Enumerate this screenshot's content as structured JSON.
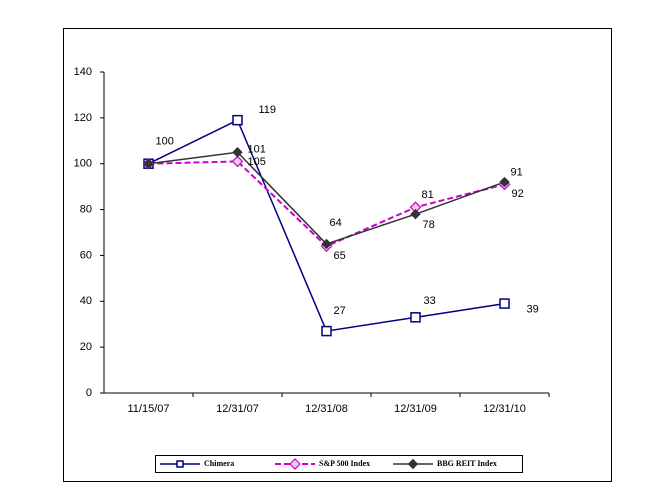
{
  "chart_data": {
    "type": "line",
    "categories": [
      "11/15/07",
      "12/31/07",
      "12/31/08",
      "12/31/09",
      "12/31/10"
    ],
    "series": [
      {
        "name": "Chimera",
        "color": "#000080",
        "values": [
          100,
          119,
          27,
          33,
          39
        ]
      },
      {
        "name": "S&P 500 Index",
        "color": "#cc00cc",
        "values": [
          100,
          101,
          64,
          81,
          91
        ]
      },
      {
        "name": "BBG REIT Index",
        "color": "#333333",
        "values": [
          100,
          105,
          65,
          78,
          92
        ]
      }
    ],
    "ylim": [
      0,
      140
    ],
    "yticks": [
      0,
      20,
      40,
      60,
      80,
      100,
      120,
      140
    ],
    "grid": false,
    "legend": "bottom"
  }
}
